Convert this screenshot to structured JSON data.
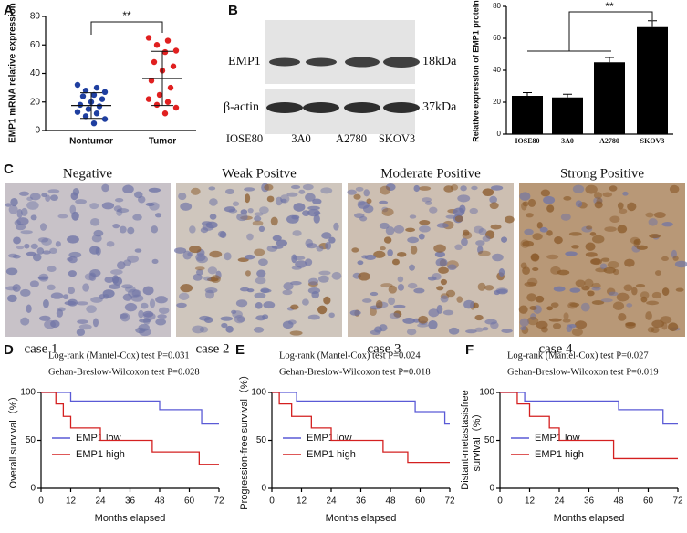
{
  "panels": {
    "labels": [
      "A",
      "B",
      "C",
      "D",
      "E",
      "F"
    ],
    "blot": {
      "rows": [
        "EMP1",
        "β-actin"
      ],
      "sizes": [
        "18kDa",
        "37kDa"
      ],
      "lanes": [
        "IOSE80",
        "3A0",
        "A2780",
        "SKOV3"
      ]
    },
    "ihc": {
      "titles": [
        "Negative",
        "Weak Positve",
        "Moderate Positive",
        "Strong Positive"
      ],
      "cases": [
        "case 1",
        "case 2",
        "case 3",
        "case 4"
      ]
    }
  },
  "chart_data": [
    {
      "type": "dot",
      "y_label": "EMP1 mRNA relative expression",
      "categories": [
        "Nontumor",
        "Tumor"
      ],
      "colors": [
        "#1f3fa0",
        "#e02020"
      ],
      "values": [
        [
          32,
          30,
          28,
          27,
          25,
          24,
          22,
          20,
          18,
          17,
          15,
          13,
          12,
          10,
          8,
          5
        ],
        [
          65,
          63,
          60,
          56,
          55,
          48,
          45,
          42,
          35,
          30,
          25,
          22,
          20,
          18,
          16,
          12
        ]
      ],
      "means": [
        17.5,
        36.5
      ],
      "sds": [
        9,
        19
      ],
      "ylim": [
        0,
        80
      ],
      "yticks": [
        0,
        20,
        40,
        60,
        80
      ],
      "annotation": "**"
    },
    {
      "type": "bar",
      "y_label": "Relative expression of EMP1 protein",
      "categories": [
        "IOSE80",
        "3A0",
        "A2780",
        "SKOV3"
      ],
      "values": [
        24,
        23,
        45,
        67
      ],
      "errors": [
        2,
        2,
        3,
        4
      ],
      "color": "#000000",
      "ylim": [
        0,
        80
      ],
      "yticks": [
        0,
        20,
        40,
        60,
        80
      ],
      "annotation": "**"
    },
    {
      "type": "survival",
      "stats": [
        "Log-rank (Mantel-Cox) test P=0.031",
        "Gehan-Breslow-Wilcoxon test P=0.028"
      ],
      "y_label": "Overall survival（%）",
      "x_label": "Months elapsed",
      "xlim": [
        0,
        72
      ],
      "xticks": [
        0,
        12,
        24,
        36,
        48,
        60,
        72
      ],
      "ylim": [
        0,
        100
      ],
      "yticks": [
        0,
        50,
        100
      ],
      "series": [
        {
          "name": "EMP1 low",
          "color": "#5a5ad6",
          "x": [
            0,
            12,
            48,
            65,
            72
          ],
          "values": [
            100,
            91,
            82,
            67,
            67
          ]
        },
        {
          "name": "EMP1 high",
          "color": "#d42020",
          "x": [
            0,
            6,
            9,
            12,
            24,
            45,
            64,
            72
          ],
          "values": [
            100,
            88,
            75,
            63,
            50,
            38,
            25,
            25
          ]
        }
      ]
    },
    {
      "type": "survival",
      "stats": [
        "Log-rank (Mantel-Cox) test P=0.024",
        "Gehan-Breslow-Wilcoxon test P=0.018"
      ],
      "y_label": "Progression-free survival（%）",
      "x_label": "Months elapsed",
      "xlim": [
        0,
        72
      ],
      "xticks": [
        0,
        12,
        24,
        36,
        48,
        60,
        72
      ],
      "ylim": [
        0,
        100
      ],
      "yticks": [
        0,
        50,
        100
      ],
      "series": [
        {
          "name": "EMP1 low",
          "color": "#5a5ad6",
          "x": [
            0,
            10,
            58,
            70,
            72
          ],
          "values": [
            100,
            91,
            80,
            67,
            67
          ]
        },
        {
          "name": "EMP1 high",
          "color": "#d42020",
          "x": [
            0,
            3,
            8,
            16,
            24,
            45,
            55,
            72
          ],
          "values": [
            100,
            88,
            75,
            63,
            50,
            38,
            27,
            27
          ]
        }
      ]
    },
    {
      "type": "survival",
      "stats": [
        "Log-rank (Mantel-Cox) test P=0.027",
        "Gehan-Breslow-Wilcoxon test P=0.019"
      ],
      "y_label": [
        "Distant-metastasisfree",
        "survival（%）"
      ],
      "x_label": "Months elapsed",
      "xlim": [
        0,
        72
      ],
      "xticks": [
        0,
        12,
        24,
        36,
        48,
        60,
        72
      ],
      "ylim": [
        0,
        100
      ],
      "yticks": [
        0,
        50,
        100
      ],
      "series": [
        {
          "name": "EMP1 low",
          "color": "#5a5ad6",
          "x": [
            0,
            10,
            48,
            66,
            72
          ],
          "values": [
            100,
            91,
            82,
            67,
            67
          ]
        },
        {
          "name": "EMP1 high",
          "color": "#d42020",
          "x": [
            0,
            7,
            12,
            20,
            24,
            46,
            72
          ],
          "values": [
            100,
            88,
            75,
            63,
            50,
            31,
            31
          ]
        }
      ]
    }
  ]
}
